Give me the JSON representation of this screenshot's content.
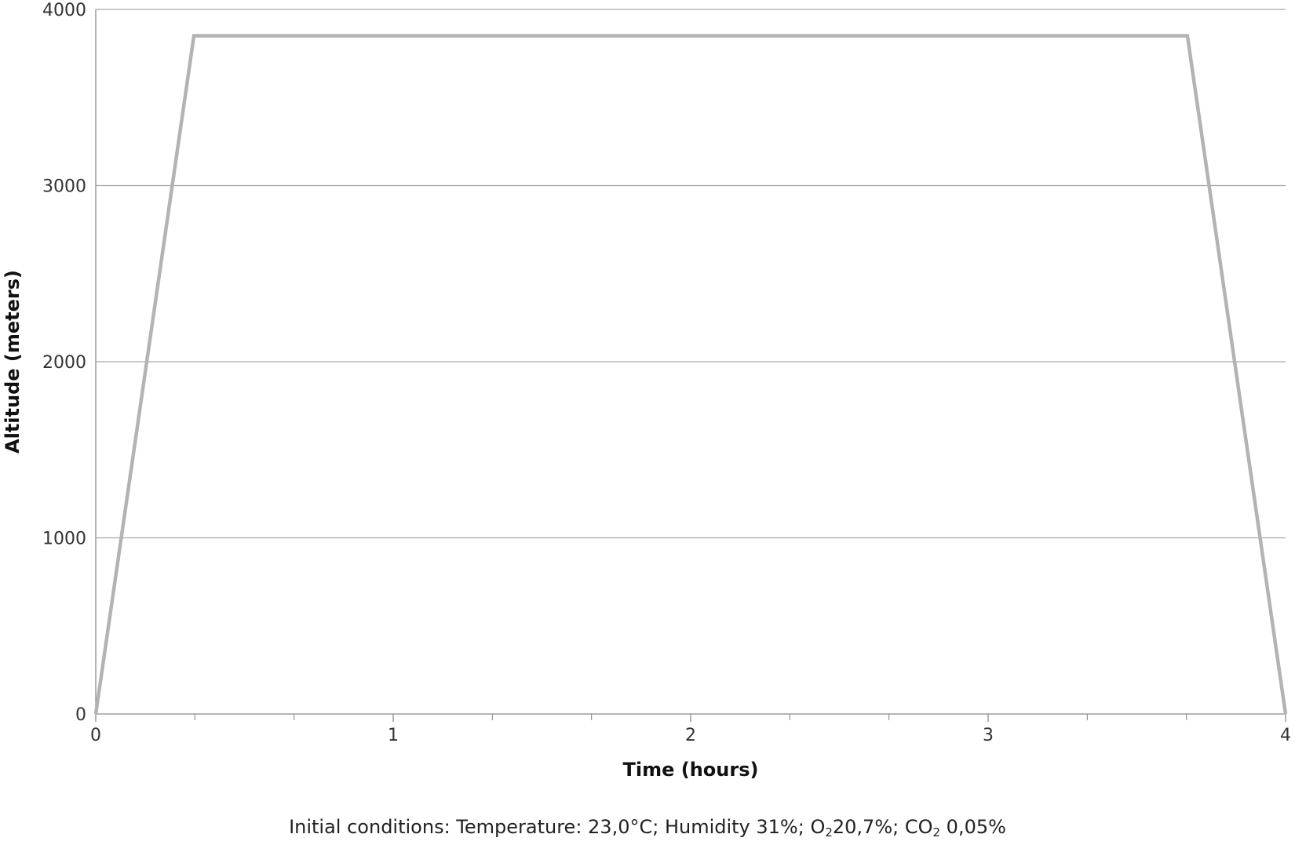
{
  "chart_data": {
    "type": "line",
    "xlabel": "Time (hours)",
    "ylabel": "Altitude (meters)",
    "xlim": [
      0,
      4
    ],
    "ylim": [
      0,
      4000
    ],
    "x_ticks": [
      "0",
      "1",
      "2",
      "3",
      "4"
    ],
    "y_ticks": [
      "0",
      "1000",
      "2000",
      "3000",
      "4000"
    ],
    "grid": "horizontal",
    "legend": "none",
    "series": [
      {
        "color": "#b3b3b3",
        "x": [
          0,
          0.33,
          3.67,
          4
        ],
        "y": [
          0,
          3850,
          3850,
          0
        ]
      }
    ]
  },
  "caption": {
    "part1": "Initial conditions: Temperature:  23,0°C; Humidity 31%; O",
    "sub1": "2",
    "part2": "20,7%; CO",
    "sub2": "2",
    "part3": " 0,05%"
  }
}
